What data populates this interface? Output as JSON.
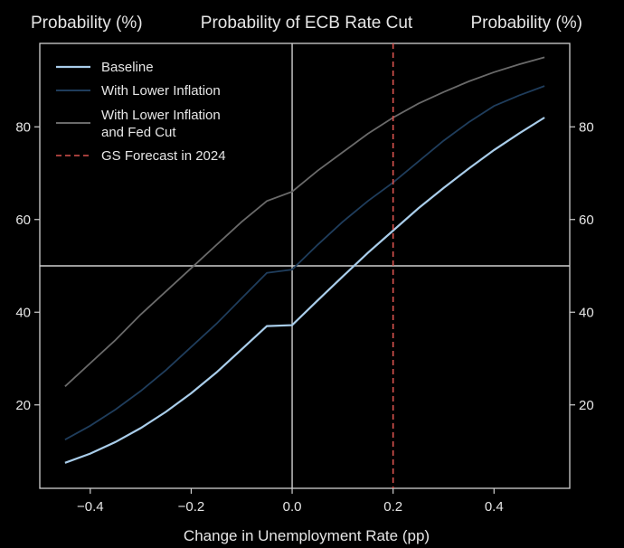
{
  "chart_data": {
    "type": "line",
    "title": "Probability of ECB Rate Cut",
    "ylabel_left": "Probability (%)",
    "ylabel_right": "Probability (%)",
    "xlabel": "Change in Unemployment Rate (pp)",
    "xlim": [
      -0.5,
      0.55
    ],
    "ylim": [
      2,
      98
    ],
    "xticks": [
      -0.4,
      -0.2,
      0.0,
      0.2,
      0.4
    ],
    "xtick_labels": [
      "−0.4",
      "−0.2",
      "0.0",
      "0.2",
      "0.4"
    ],
    "yticks": [
      20,
      40,
      60,
      80
    ],
    "ytick_labels": [
      "20",
      "40",
      "60",
      "80"
    ],
    "x": [
      -0.45,
      -0.4,
      -0.35,
      -0.3,
      -0.25,
      -0.2,
      -0.15,
      -0.1,
      -0.05,
      0.0,
      0.05,
      0.1,
      0.15,
      0.2,
      0.25,
      0.3,
      0.35,
      0.4,
      0.45,
      0.5
    ],
    "series": [
      {
        "name": "Baseline",
        "color": "#a9cdea",
        "values": [
          7.5,
          9.5,
          12,
          15,
          18.5,
          22.5,
          27,
          32,
          37,
          37.2,
          42.5,
          47.7,
          52.8,
          57.6,
          62.4,
          66.8,
          71,
          75,
          78.6,
          82
        ]
      },
      {
        "name": "With Lower Inflation",
        "color": "#1f3d5c",
        "values": [
          12.5,
          15.5,
          19,
          23,
          27.5,
          32.5,
          37.5,
          43,
          48.5,
          49.2,
          54.5,
          59.5,
          64,
          68,
          72.5,
          77,
          81,
          84.5,
          86.8,
          88.8
        ]
      },
      {
        "name": "With Lower Inflation and Fed Cut",
        "color": "#6a6a6a",
        "values": [
          24,
          29,
          34,
          39.5,
          44.5,
          49.5,
          54.5,
          59.5,
          64,
          66,
          70.5,
          74.5,
          78.5,
          82,
          85,
          87.5,
          89.8,
          91.8,
          93.5,
          95
        ]
      }
    ],
    "reference_lines": [
      {
        "name": "GS Forecast in 2024",
        "axis": "x",
        "value": 0.2,
        "color": "#d9534f",
        "style": "dashed"
      },
      {
        "name": "zero-change",
        "axis": "x",
        "value": 0.0,
        "color": "#cfcfcf",
        "style": "solid"
      },
      {
        "name": "fifty-percent",
        "axis": "y",
        "value": 50,
        "color": "#cfcfcf",
        "style": "solid"
      }
    ],
    "legend": {
      "placement": "top-left",
      "entries": [
        {
          "label": "Baseline",
          "color": "#a9cdea",
          "style": "solid"
        },
        {
          "label": "With Lower Inflation",
          "color": "#1f3d5c",
          "style": "solid"
        },
        {
          "label_lines": [
            "With Lower Inflation",
            "and Fed Cut"
          ],
          "color": "#6a6a6a",
          "style": "solid"
        },
        {
          "label": "GS Forecast in 2024",
          "color": "#d9534f",
          "style": "dashed"
        }
      ]
    },
    "grid": false
  }
}
